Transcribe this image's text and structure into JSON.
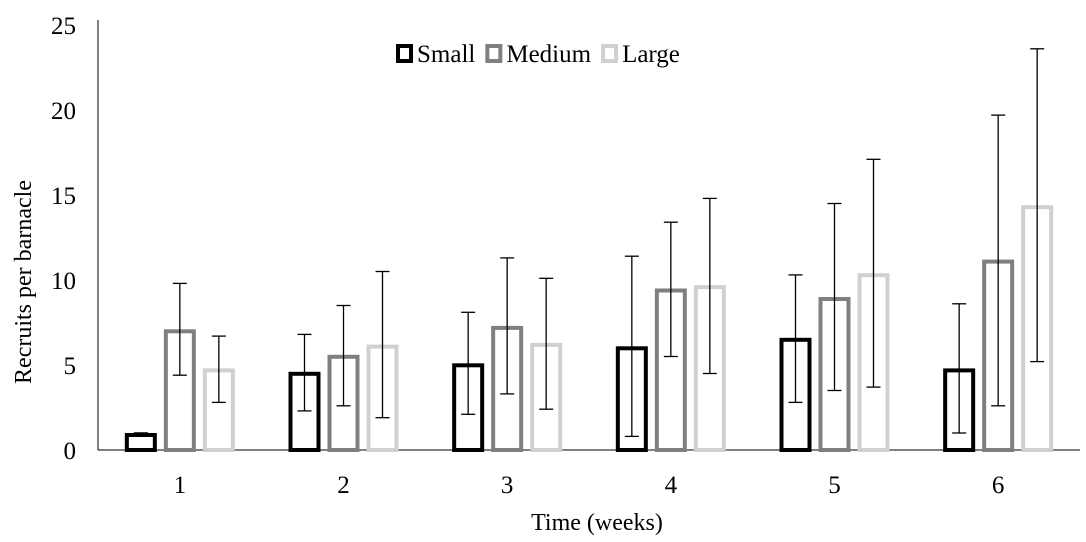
{
  "chart_data": {
    "type": "bar",
    "title": "",
    "xlabel": "Time (weeks)",
    "ylabel": "Recruits per barnacle",
    "ylim": [
      0,
      25
    ],
    "yticks": [
      "0",
      "5",
      "10",
      "15",
      "20",
      "25"
    ],
    "categories": [
      "1",
      "2",
      "3",
      "4",
      "5",
      "6"
    ],
    "grid": false,
    "legend_position": "top-center",
    "bar_style": "outlined",
    "series": [
      {
        "name": "Small",
        "color": "#000000",
        "values": [
          1.0,
          4.6,
          5.1,
          6.1,
          6.6,
          4.8
        ],
        "error_low": [
          1.0,
          2.3,
          2.1,
          0.8,
          2.8,
          1.0
        ],
        "error_high": [
          1.0,
          6.8,
          8.1,
          11.4,
          10.3,
          8.6
        ]
      },
      {
        "name": "Medium",
        "color": "#7f7f7f",
        "values": [
          7.1,
          5.6,
          7.3,
          9.5,
          9.0,
          11.2
        ],
        "error_low": [
          4.4,
          2.6,
          3.3,
          5.5,
          3.5,
          2.6
        ],
        "error_high": [
          9.8,
          8.5,
          11.3,
          13.4,
          14.5,
          19.7
        ]
      },
      {
        "name": "Large",
        "color": "#d0d0d0",
        "values": [
          4.8,
          6.2,
          6.3,
          9.7,
          10.4,
          14.4
        ],
        "error_low": [
          2.8,
          1.9,
          2.4,
          4.5,
          3.7,
          5.2
        ],
        "error_high": [
          6.7,
          10.5,
          10.1,
          14.8,
          17.1,
          23.6
        ]
      }
    ]
  }
}
